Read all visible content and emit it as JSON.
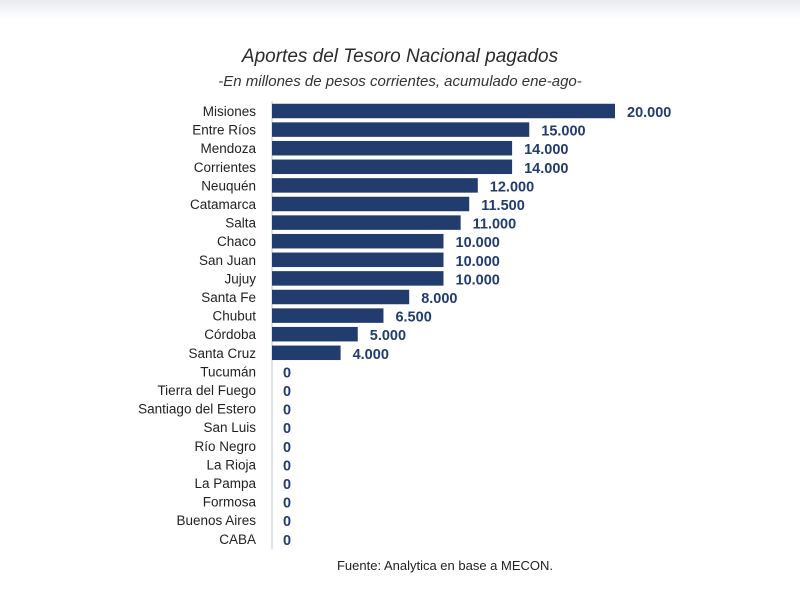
{
  "chart_data": {
    "type": "bar",
    "orientation": "horizontal",
    "title": "Aportes del Tesoro Nacional pagados",
    "subtitle": "-En millones de pesos corrientes, acumulado ene-ago-",
    "categories": [
      "Misiones",
      "Entre Ríos",
      "Mendoza",
      "Corrientes",
      "Neuquén",
      "Catamarca",
      "Salta",
      "Chaco",
      "San Juan",
      "Jujuy",
      "Santa Fe",
      "Chubut",
      "Córdoba",
      "Santa Cruz",
      "Tucumán",
      "Tierra del Fuego",
      "Santiago del Estero",
      "San Luis",
      "Río Negro",
      "La Rioja",
      "La Pampa",
      "Formosa",
      "Buenos Aires",
      "CABA"
    ],
    "values": [
      20000,
      15000,
      14000,
      14000,
      12000,
      11500,
      11000,
      10000,
      10000,
      10000,
      8000,
      6500,
      5000,
      4000,
      0,
      0,
      0,
      0,
      0,
      0,
      0,
      0,
      0,
      0
    ],
    "value_labels": [
      "20.000",
      "15.000",
      "14.000",
      "14.000",
      "12.000",
      "11.500",
      "11.000",
      "10.000",
      "10.000",
      "10.000",
      "8.000",
      "6.500",
      "5.000",
      "4.000",
      "0",
      "0",
      "0",
      "0",
      "0",
      "0",
      "0",
      "0",
      "0",
      "0"
    ],
    "xlim": [
      0,
      20000
    ],
    "bar_color": "#223c6e",
    "grid": false,
    "legend": "none"
  },
  "source": "Fuente: Analytica en base a MECON."
}
